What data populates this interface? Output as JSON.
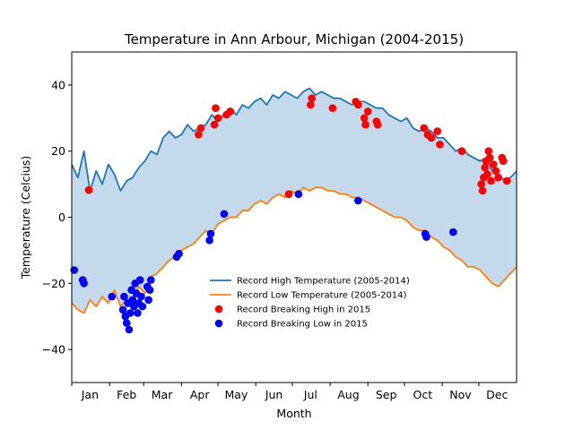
{
  "chart_data": {
    "type": "line",
    "title": "Temperature in Ann Arbour, Michigan (2004-2015)",
    "xlabel": "Month",
    "ylabel": "Temperature (Celcius)",
    "xlim": [
      0,
      365
    ],
    "ylim": [
      -50,
      50
    ],
    "yticks": [
      -40,
      -20,
      0,
      20,
      40
    ],
    "grid": false,
    "legend_position": "lower-center",
    "months": [
      {
        "label": "Jan",
        "mid_day": 15
      },
      {
        "label": "Feb",
        "mid_day": 45
      },
      {
        "label": "Mar",
        "mid_day": 74
      },
      {
        "label": "Apr",
        "mid_day": 105
      },
      {
        "label": "May",
        "mid_day": 135
      },
      {
        "label": "Jun",
        "mid_day": 166
      },
      {
        "label": "Jul",
        "mid_day": 196
      },
      {
        "label": "Aug",
        "mid_day": 227
      },
      {
        "label": "Sep",
        "mid_day": 258
      },
      {
        "label": "Oct",
        "mid_day": 288
      },
      {
        "label": "Nov",
        "mid_day": 319
      },
      {
        "label": "Dec",
        "mid_day": 349
      }
    ],
    "month_start_days": [
      0,
      31,
      59,
      90,
      120,
      151,
      181,
      212,
      243,
      273,
      304,
      334
    ],
    "series": [
      {
        "name": "Record High Temperature (2005-2014)",
        "color": "#1f77b4",
        "x": [
          0,
          5,
          10,
          15,
          20,
          25,
          30,
          35,
          40,
          45,
          50,
          55,
          60,
          65,
          70,
          75,
          80,
          85,
          90,
          95,
          100,
          105,
          110,
          115,
          120,
          125,
          130,
          135,
          140,
          145,
          150,
          155,
          160,
          165,
          170,
          175,
          180,
          185,
          190,
          195,
          200,
          205,
          210,
          215,
          220,
          225,
          230,
          235,
          240,
          245,
          250,
          255,
          260,
          265,
          270,
          275,
          280,
          285,
          290,
          295,
          300,
          305,
          310,
          315,
          320,
          325,
          330,
          335,
          340,
          345,
          350,
          355,
          360,
          365
        ],
        "y": [
          16,
          12,
          20,
          8,
          14,
          10,
          16,
          13,
          8,
          11,
          12,
          15,
          17,
          20,
          19,
          24,
          26,
          24,
          25,
          28,
          26,
          27,
          28,
          31,
          29,
          31,
          33,
          31,
          34,
          33,
          35,
          36,
          34,
          37,
          36,
          38,
          37,
          36,
          38,
          39,
          37,
          38,
          37,
          36,
          36,
          35,
          34,
          35,
          35,
          34,
          33,
          33,
          31,
          30,
          29,
          30,
          27,
          26,
          27,
          26,
          24,
          24,
          22,
          20,
          21,
          19,
          18,
          17,
          18,
          14,
          13,
          11,
          12,
          14
        ]
      },
      {
        "name": "Record Low Temperature (2005-2014)",
        "color": "#ff7f0e",
        "x": [
          0,
          5,
          10,
          15,
          20,
          25,
          30,
          35,
          40,
          45,
          50,
          55,
          60,
          65,
          70,
          75,
          80,
          85,
          90,
          95,
          100,
          105,
          110,
          115,
          120,
          125,
          130,
          135,
          140,
          145,
          150,
          155,
          160,
          165,
          170,
          175,
          180,
          185,
          190,
          195,
          200,
          205,
          210,
          215,
          220,
          225,
          230,
          235,
          240,
          245,
          250,
          255,
          260,
          265,
          270,
          275,
          280,
          285,
          290,
          295,
          300,
          305,
          310,
          315,
          320,
          325,
          330,
          335,
          340,
          345,
          350,
          355,
          360,
          365
        ],
        "y": [
          -26,
          -28,
          -29,
          -25,
          -27,
          -24,
          -26,
          -22,
          -27,
          -25,
          -25,
          -21,
          -23,
          -18,
          -17,
          -15,
          -13,
          -12,
          -10,
          -9,
          -8,
          -6,
          -4,
          -5,
          -2,
          -1,
          0,
          0,
          2,
          2,
          4,
          5,
          4,
          6,
          7,
          6,
          8,
          7,
          9,
          8,
          9,
          9,
          8,
          8,
          7,
          7,
          6,
          6,
          5,
          4,
          3,
          2,
          1,
          0,
          0,
          -1,
          -3,
          -4,
          -4,
          -6,
          -7,
          -9,
          -10,
          -12,
          -13,
          -15,
          -15,
          -16,
          -18,
          -20,
          -21,
          -19,
          -17,
          -15
        ]
      }
    ],
    "scatter": [
      {
        "name": "Record Breaking High in 2015",
        "color": "#ff0000",
        "points": [
          [
            14,
            8.2
          ],
          [
            104,
            25
          ],
          [
            106,
            27
          ],
          [
            117,
            28
          ],
          [
            118,
            33
          ],
          [
            120,
            30
          ],
          [
            127,
            31
          ],
          [
            130,
            32
          ],
          [
            178,
            7
          ],
          [
            196,
            34
          ],
          [
            197,
            36
          ],
          [
            214,
            33
          ],
          [
            233,
            35
          ],
          [
            235,
            34
          ],
          [
            240,
            30
          ],
          [
            241,
            28
          ],
          [
            243,
            32
          ],
          [
            250,
            29
          ],
          [
            251,
            28
          ],
          [
            289,
            27
          ],
          [
            292,
            25
          ],
          [
            295,
            24
          ],
          [
            300,
            26
          ],
          [
            302,
            22
          ],
          [
            320,
            20
          ],
          [
            336,
            10
          ],
          [
            337,
            8
          ],
          [
            338,
            12
          ],
          [
            339,
            15
          ],
          [
            340,
            17
          ],
          [
            341,
            13
          ],
          [
            342,
            20
          ],
          [
            343,
            18
          ],
          [
            344,
            11
          ],
          [
            346,
            16
          ],
          [
            348,
            14
          ],
          [
            350,
            12
          ],
          [
            353,
            18
          ],
          [
            354,
            17
          ],
          [
            357,
            11
          ]
        ]
      },
      {
        "name": "Record Breaking Low in 2015",
        "color": "#0000ff",
        "points": [
          [
            2,
            -16
          ],
          [
            9,
            -19
          ],
          [
            10,
            -20
          ],
          [
            33,
            -24
          ],
          [
            42,
            -28
          ],
          [
            43,
            -24
          ],
          [
            44,
            -30
          ],
          [
            45,
            -32
          ],
          [
            46,
            -26
          ],
          [
            47,
            -34
          ],
          [
            48,
            -29
          ],
          [
            49,
            -22
          ],
          [
            50,
            -25
          ],
          [
            51,
            -27
          ],
          [
            52,
            -20
          ],
          [
            53,
            -23
          ],
          [
            54,
            -29
          ],
          [
            55,
            -26
          ],
          [
            56,
            -19
          ],
          [
            57,
            -24
          ],
          [
            58,
            -27
          ],
          [
            62,
            -21
          ],
          [
            63,
            -25
          ],
          [
            64,
            -22
          ],
          [
            65,
            -19
          ],
          [
            86,
            -12
          ],
          [
            88,
            -11
          ],
          [
            113,
            -7
          ],
          [
            114,
            -5
          ],
          [
            125,
            1
          ],
          [
            186,
            7
          ],
          [
            235,
            5
          ],
          [
            290,
            -5
          ],
          [
            291,
            -6
          ],
          [
            313,
            -4.5
          ]
        ]
      }
    ]
  }
}
